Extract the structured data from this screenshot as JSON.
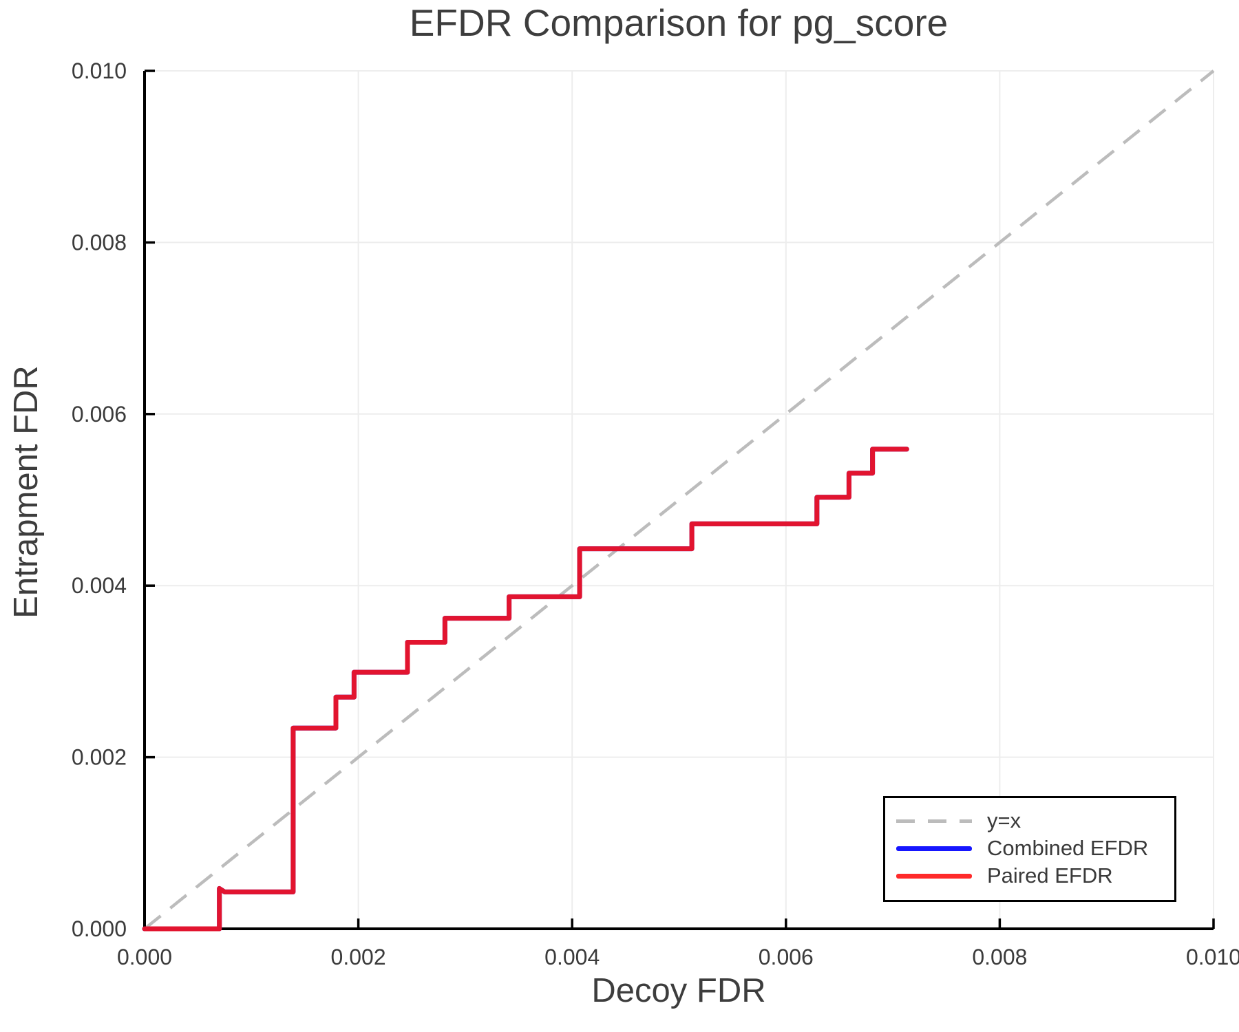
{
  "title": "EFDR Comparison for pg_score",
  "colors": {
    "grid": "#ededed",
    "spine": "#000000",
    "reference_dash": "#bcbcbc",
    "combined_efdr": "#1616ff",
    "paired_efdr": "#e2142f",
    "paired_legend_swatch": "#ff2a2a",
    "text": "#3d3d3d"
  },
  "chart_data": {
    "type": "line",
    "subtype": "step",
    "title": "EFDR Comparison for pg_score",
    "xlabel": "Decoy FDR",
    "ylabel": "Entrapment FDR",
    "xlim": [
      0.0,
      0.01
    ],
    "ylim": [
      0.0,
      0.01
    ],
    "grid": true,
    "x_ticks": {
      "values": [
        0.0,
        0.002,
        0.004,
        0.006,
        0.008,
        0.01
      ],
      "labels": [
        "0.000",
        "0.002",
        "0.004",
        "0.006",
        "0.008",
        "0.010"
      ]
    },
    "y_ticks": {
      "values": [
        0.0,
        0.002,
        0.004,
        0.006,
        0.008,
        0.01
      ],
      "labels": [
        "0.000",
        "0.002",
        "0.004",
        "0.006",
        "0.008",
        "0.010"
      ]
    },
    "reference_line": {
      "label": "y=x",
      "from": [
        0.0,
        0.0
      ],
      "to": [
        0.01,
        0.01
      ],
      "style": "dashed",
      "color": "#bcbcbc"
    },
    "step_points": [
      [
        0.0,
        0.0
      ],
      [
        0.0007,
        0.0
      ],
      [
        0.0007,
        0.00047
      ],
      [
        0.00075,
        0.00043
      ],
      [
        0.00139,
        0.00043
      ],
      [
        0.00139,
        0.00234
      ],
      [
        0.00179,
        0.00234
      ],
      [
        0.00179,
        0.0027
      ],
      [
        0.00196,
        0.0027
      ],
      [
        0.00196,
        0.00299
      ],
      [
        0.00246,
        0.00299
      ],
      [
        0.00246,
        0.00334
      ],
      [
        0.00281,
        0.00334
      ],
      [
        0.00281,
        0.00362
      ],
      [
        0.00341,
        0.00362
      ],
      [
        0.00341,
        0.00387
      ],
      [
        0.00407,
        0.00387
      ],
      [
        0.00407,
        0.00443
      ],
      [
        0.00512,
        0.00443
      ],
      [
        0.00512,
        0.00472
      ],
      [
        0.00629,
        0.00472
      ],
      [
        0.00629,
        0.00503
      ],
      [
        0.00659,
        0.00503
      ],
      [
        0.00659,
        0.00531
      ],
      [
        0.00681,
        0.00531
      ],
      [
        0.00681,
        0.00559
      ],
      [
        0.00713,
        0.00559
      ]
    ],
    "series": [
      {
        "name": "Combined EFDR",
        "color": "#1616ff",
        "points": "step_points",
        "note": "identical to Paired EFDR, hidden beneath it"
      },
      {
        "name": "Paired EFDR",
        "color": "#e2142f",
        "points": "step_points"
      }
    ],
    "legend": {
      "position": "bottom-right",
      "items": [
        {
          "label": "y=x",
          "style": "dashed",
          "color": "#bcbcbc"
        },
        {
          "label": "Combined EFDR",
          "style": "solid",
          "color": "#1616ff"
        },
        {
          "label": "Paired EFDR",
          "style": "solid",
          "color": "#ff2a2a"
        }
      ]
    }
  }
}
